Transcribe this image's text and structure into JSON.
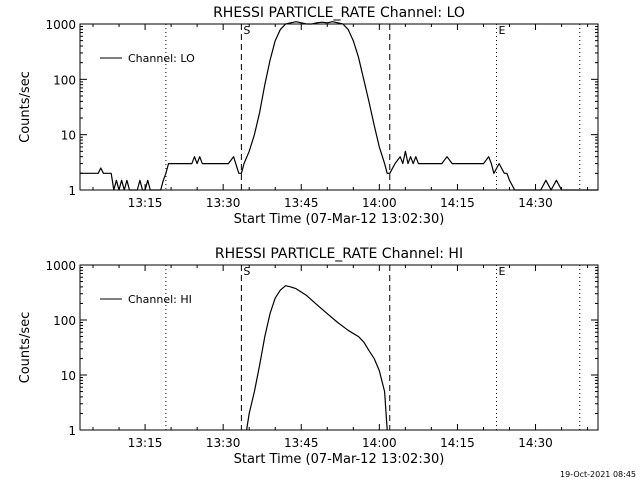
{
  "footer": {
    "stamp": "19-Oct-2021 08:45"
  },
  "chart_data": [
    {
      "type": "line",
      "title": "RHESSI PARTICLE_RATE Channel: LO",
      "xlabel": "Start Time (07-Mar-12 13:02:30)",
      "ylabel": "Counts/sec",
      "y_scale": "log",
      "ylim": [
        1,
        1000
      ],
      "xlim": [
        "13:02:30",
        "14:42:00"
      ],
      "x_ticks": [
        "13:15",
        "13:30",
        "13:45",
        "14:00",
        "14:15",
        "14:30"
      ],
      "y_ticks": [
        "1",
        "10",
        "100",
        "1000"
      ],
      "grid": false,
      "legend": {
        "position": "top-left",
        "entries": [
          "Channel: LO"
        ]
      },
      "markers": [
        {
          "label": "S",
          "time": "13:33:30",
          "style": "dashed"
        },
        {
          "label": "",
          "time": "14:02:00",
          "style": "dashed"
        },
        {
          "label": "",
          "time": "13:19:00",
          "style": "dotted"
        },
        {
          "label": "E",
          "time": "14:22:30",
          "style": "dotted"
        },
        {
          "label": "",
          "time": "14:38:30",
          "style": "dotted"
        }
      ],
      "series": [
        {
          "name": "Channel: LO",
          "x": [
            "13:02:30",
            "13:06:00",
            "13:06:30",
            "13:07:00",
            "13:08:30",
            "13:09:00",
            "13:09:30",
            "13:10:00",
            "13:10:30",
            "13:11:00",
            "13:11:30",
            "13:12:00",
            "13:13:30",
            "13:14:00",
            "13:14:30",
            "13:15:00",
            "13:15:30",
            "13:16:00",
            "13:18:00",
            "13:18:30",
            "13:19:00",
            "13:19:30",
            "13:20:00",
            "13:23:00",
            "13:24:00",
            "13:24:30",
            "13:25:00",
            "13:25:30",
            "13:26:00",
            "13:28:00",
            "13:30:00",
            "13:31:00",
            "13:32:00",
            "13:33:00",
            "13:33:30",
            "13:34:00",
            "13:35:00",
            "13:36:00",
            "13:37:00",
            "13:38:00",
            "13:39:00",
            "13:40:00",
            "13:41:00",
            "13:42:00",
            "13:43:00",
            "13:44:00",
            "13:45:00",
            "13:46:00",
            "13:47:00",
            "13:48:00",
            "13:49:00",
            "13:50:00",
            "13:51:00",
            "13:52:00",
            "13:53:00",
            "13:54:00",
            "13:55:00",
            "13:56:00",
            "13:57:00",
            "13:58:00",
            "13:59:00",
            "14:00:00",
            "14:01:00",
            "14:01:30",
            "14:02:00",
            "14:03:00",
            "14:04:00",
            "14:04:30",
            "14:05:00",
            "14:05:30",
            "14:06:00",
            "14:06:30",
            "14:07:00",
            "14:07:30",
            "14:08:00",
            "14:10:00",
            "14:12:00",
            "14:13:00",
            "14:14:00",
            "14:15:00",
            "14:16:00",
            "14:18:00",
            "14:20:00",
            "14:21:00",
            "14:21:30",
            "14:22:00",
            "14:23:00",
            "14:24:00",
            "14:24:30",
            "14:25:00",
            "14:26:00",
            "14:27:00",
            "14:30:00",
            "14:31:00",
            "14:32:00",
            "14:33:00",
            "14:34:00",
            "14:35:00",
            "14:36:00",
            "14:37:00",
            "14:40:00",
            "14:42:00"
          ],
          "y": [
            2,
            2,
            2.5,
            2,
            2,
            1,
            1.5,
            1,
            1.5,
            1,
            1.5,
            1,
            1,
            1.5,
            1,
            1,
            1.5,
            1,
            1,
            1.5,
            2,
            3,
            3,
            3,
            3,
            4,
            3,
            4,
            3,
            3,
            3,
            3,
            4,
            2,
            2,
            3,
            5,
            10,
            25,
            80,
            220,
            500,
            800,
            1000,
            1050,
            1100,
            1050,
            1000,
            1000,
            1050,
            1080,
            1050,
            1100,
            1050,
            1000,
            800,
            500,
            250,
            100,
            40,
            15,
            6,
            3,
            2,
            2,
            3,
            4,
            3,
            5,
            3,
            4,
            3,
            4,
            3,
            3,
            3,
            3,
            4,
            3,
            3,
            3,
            3,
            3,
            4,
            3,
            2,
            3,
            2,
            2,
            1.5,
            1,
            1,
            1,
            1,
            1.5,
            1,
            1.5,
            1,
            1,
            1,
            1,
            1
          ]
        }
      ]
    },
    {
      "type": "line",
      "title": "RHESSI PARTICLE_RATE Channel: HI",
      "xlabel": "Start Time (07-Mar-12 13:02:30)",
      "ylabel": "Counts/sec",
      "y_scale": "log",
      "ylim": [
        1,
        1000
      ],
      "xlim": [
        "13:02:30",
        "14:42:00"
      ],
      "x_ticks": [
        "13:15",
        "13:30",
        "13:45",
        "14:00",
        "14:15",
        "14:30"
      ],
      "y_ticks": [
        "1",
        "10",
        "100",
        "1000"
      ],
      "grid": false,
      "legend": {
        "position": "top-left",
        "entries": [
          "Channel: HI"
        ]
      },
      "markers": [
        {
          "label": "S",
          "time": "13:33:30",
          "style": "dashed"
        },
        {
          "label": "",
          "time": "14:02:00",
          "style": "dashed"
        },
        {
          "label": "",
          "time": "13:19:00",
          "style": "dotted"
        },
        {
          "label": "E",
          "time": "14:22:30",
          "style": "dotted"
        },
        {
          "label": "",
          "time": "14:38:30",
          "style": "dotted"
        }
      ],
      "series": [
        {
          "name": "Channel: HI",
          "x": [
            "13:34:30",
            "13:35:00",
            "13:36:00",
            "13:37:00",
            "13:38:00",
            "13:39:00",
            "13:40:00",
            "13:41:00",
            "13:42:00",
            "13:43:00",
            "13:44:00",
            "13:46:00",
            "13:48:00",
            "13:50:00",
            "13:52:00",
            "13:54:00",
            "13:56:00",
            "13:57:00",
            "13:58:00",
            "13:59:00",
            "14:00:00",
            "14:01:00",
            "14:01:30"
          ],
          "y": [
            1,
            2,
            5,
            15,
            50,
            130,
            250,
            350,
            420,
            400,
            370,
            280,
            190,
            130,
            90,
            65,
            50,
            40,
            28,
            20,
            12,
            5,
            1
          ]
        }
      ]
    }
  ]
}
